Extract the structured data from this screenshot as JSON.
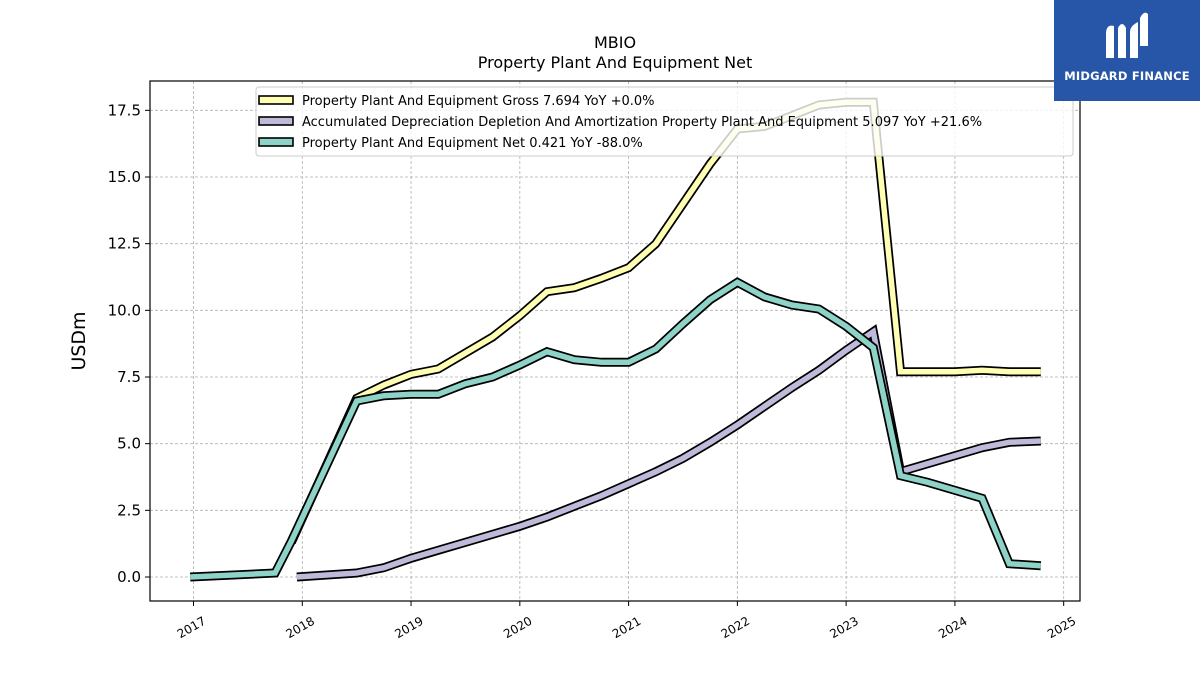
{
  "chart_data": {
    "type": "line",
    "title": "MBIO",
    "subtitle": "Property Plant And Equipment Net",
    "xlabel": "",
    "ylabel": "USDm",
    "xlim": [
      2016.6,
      2025.15
    ],
    "ylim": [
      -0.9,
      18.6
    ],
    "x_ticks": [
      "2017",
      "2018",
      "2019",
      "2020",
      "2021",
      "2022",
      "2023",
      "2024",
      "2025"
    ],
    "y_ticks": [
      "0.0",
      "2.5",
      "5.0",
      "7.5",
      "10.0",
      "12.5",
      "15.0",
      "17.5"
    ],
    "grid": true,
    "legend_position": "top",
    "series": [
      {
        "name": "Property Plant And Equipment Gross  7.694 YoY +0.0%",
        "color": "#ffffb3",
        "points": [
          [
            2017.9,
            1.3
          ],
          [
            2018.5,
            6.7
          ],
          [
            2018.75,
            7.2
          ],
          [
            2019.0,
            7.6
          ],
          [
            2019.25,
            7.8
          ],
          [
            2019.5,
            8.4
          ],
          [
            2019.75,
            9.0
          ],
          [
            2020.0,
            9.8
          ],
          [
            2020.25,
            10.7
          ],
          [
            2020.5,
            10.85
          ],
          [
            2020.75,
            11.2
          ],
          [
            2021.0,
            11.6
          ],
          [
            2021.25,
            12.5
          ],
          [
            2021.5,
            14.0
          ],
          [
            2021.75,
            15.5
          ],
          [
            2022.0,
            16.8
          ],
          [
            2022.25,
            16.9
          ],
          [
            2022.5,
            17.3
          ],
          [
            2022.75,
            17.7
          ],
          [
            2023.0,
            17.8
          ],
          [
            2023.25,
            17.8
          ],
          [
            2023.5,
            7.7
          ],
          [
            2023.75,
            7.7
          ],
          [
            2024.0,
            7.7
          ],
          [
            2024.25,
            7.75
          ],
          [
            2024.5,
            7.7
          ],
          [
            2024.79,
            7.7
          ]
        ]
      },
      {
        "name": "Accumulated Depreciation Depletion And Amortization Property Plant And Equipment  5.097 YoY +21.6%",
        "color": "#bebada",
        "points": [
          [
            2017.95,
            0.0
          ],
          [
            2018.5,
            0.15
          ],
          [
            2018.75,
            0.35
          ],
          [
            2019.0,
            0.7
          ],
          [
            2019.25,
            1.0
          ],
          [
            2019.5,
            1.3
          ],
          [
            2019.75,
            1.6
          ],
          [
            2020.0,
            1.9
          ],
          [
            2020.25,
            2.25
          ],
          [
            2020.5,
            2.65
          ],
          [
            2020.75,
            3.05
          ],
          [
            2021.0,
            3.5
          ],
          [
            2021.25,
            3.95
          ],
          [
            2021.5,
            4.45
          ],
          [
            2021.75,
            5.05
          ],
          [
            2022.0,
            5.7
          ],
          [
            2022.25,
            6.4
          ],
          [
            2022.5,
            7.1
          ],
          [
            2022.75,
            7.75
          ],
          [
            2023.0,
            8.5
          ],
          [
            2023.25,
            9.2
          ],
          [
            2023.5,
            3.95
          ],
          [
            2023.75,
            4.25
          ],
          [
            2024.0,
            4.55
          ],
          [
            2024.25,
            4.85
          ],
          [
            2024.5,
            5.05
          ],
          [
            2024.79,
            5.1
          ]
        ]
      },
      {
        "name": "Property Plant And Equipment Net  0.421 YoY -88.0%",
        "color": "#8dd3c7",
        "points": [
          [
            2016.97,
            0.0
          ],
          [
            2017.75,
            0.15
          ],
          [
            2017.9,
            1.35
          ],
          [
            2018.5,
            6.6
          ],
          [
            2018.75,
            6.8
          ],
          [
            2019.0,
            6.85
          ],
          [
            2019.25,
            6.85
          ],
          [
            2019.5,
            7.25
          ],
          [
            2019.75,
            7.5
          ],
          [
            2020.0,
            7.95
          ],
          [
            2020.25,
            8.45
          ],
          [
            2020.5,
            8.15
          ],
          [
            2020.75,
            8.05
          ],
          [
            2021.0,
            8.05
          ],
          [
            2021.25,
            8.55
          ],
          [
            2021.5,
            9.5
          ],
          [
            2021.75,
            10.4
          ],
          [
            2022.0,
            11.05
          ],
          [
            2022.25,
            10.5
          ],
          [
            2022.5,
            10.2
          ],
          [
            2022.75,
            10.05
          ],
          [
            2023.0,
            9.4
          ],
          [
            2023.25,
            8.6
          ],
          [
            2023.5,
            3.8
          ],
          [
            2023.75,
            3.55
          ],
          [
            2024.0,
            3.25
          ],
          [
            2024.25,
            2.95
          ],
          [
            2024.5,
            0.5
          ],
          [
            2024.79,
            0.42
          ]
        ]
      }
    ]
  },
  "logo": {
    "text": "MIDGARD FINANCE",
    "bg_color": "#2756a8"
  }
}
